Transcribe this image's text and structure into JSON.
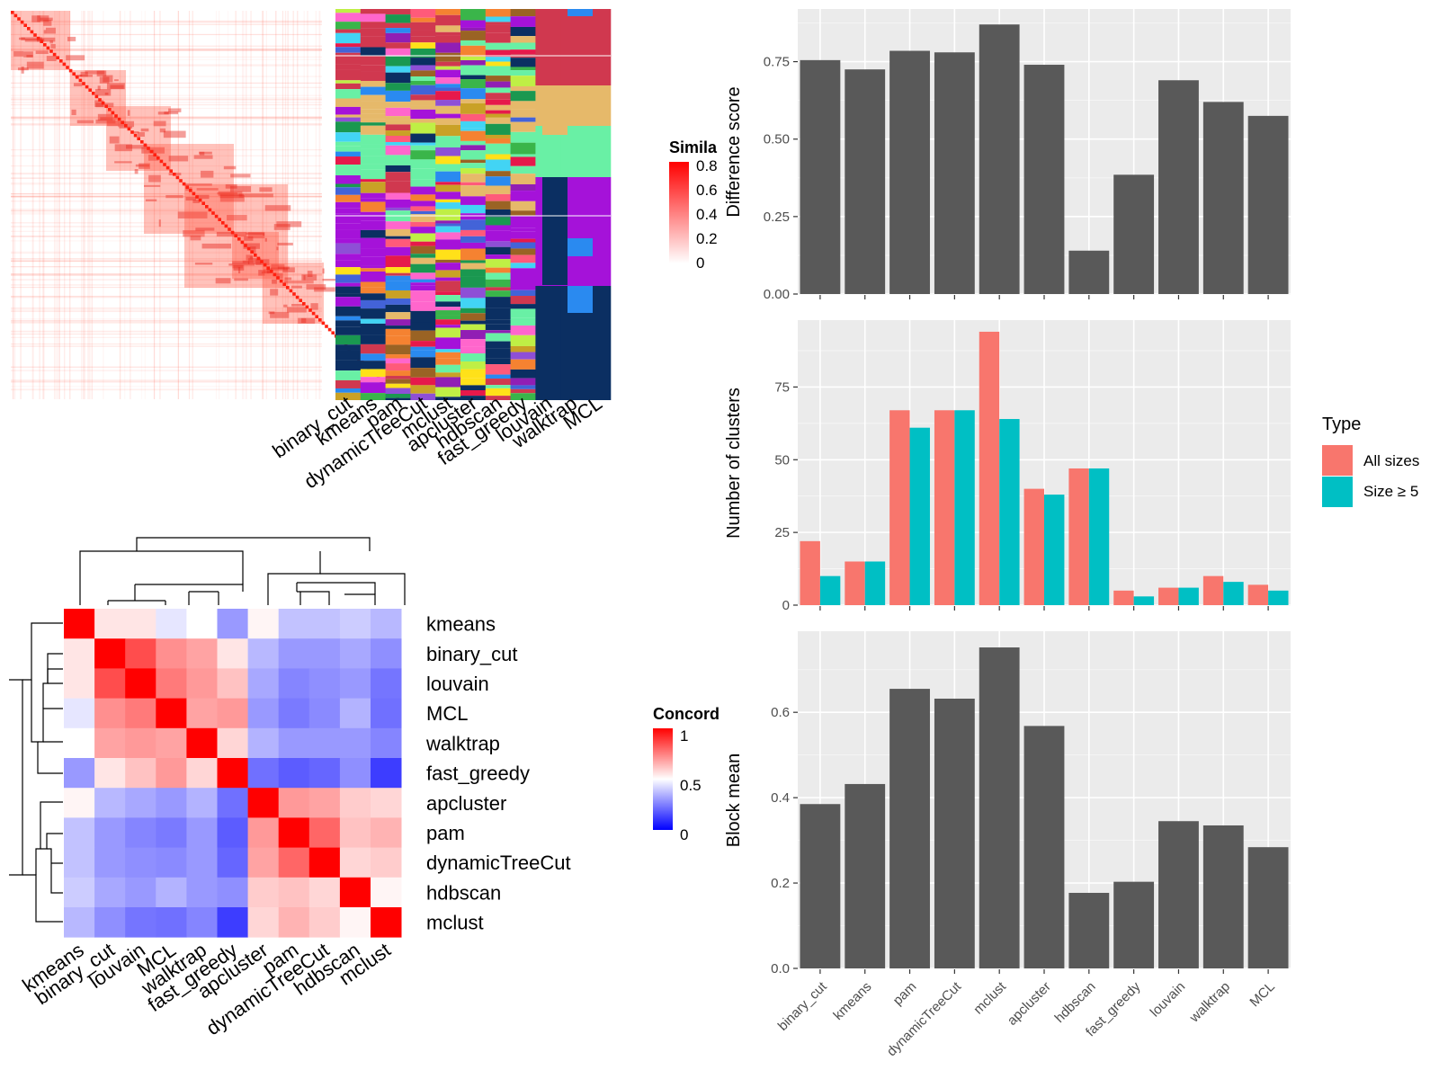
{
  "colors": {
    "panel_bg": "#ebebeb",
    "grid": "#ffffff",
    "bar_fill": "#595959",
    "all_sizes": "#f8766d",
    "size_ge5": "#00bfc4",
    "concordance_low": "#0000ff",
    "concordance_mid": "#ffffff",
    "concordance_high": "#ff0000",
    "similarity_low": "#ffffff",
    "similarity_high": "#ff0000"
  },
  "similarity_heatmap": {
    "legend_title": "Simila",
    "legend_ticks": [
      "0",
      "0.2",
      "0.4",
      "0.6",
      "0.8"
    ],
    "method_labels": [
      "binary_cut",
      "kmeans",
      "pam",
      "dynamicTreeCut",
      "mclust",
      "apcluster",
      "hdbscan",
      "fast_greedy",
      "louvain",
      "walktrap",
      "MCL"
    ]
  },
  "concordance_heatmap": {
    "legend_title": "Concord",
    "legend_ticks": [
      "1",
      "0.5",
      "0"
    ],
    "order": [
      "kmeans",
      "binary_cut",
      "louvain",
      "MCL",
      "walktrap",
      "fast_greedy",
      "apcluster",
      "pam",
      "dynamicTreeCut",
      "hdbscan",
      "mclust"
    ]
  },
  "chart_data": [
    {
      "type": "bar",
      "ylabel": "Difference score",
      "categories": [
        "binary_cut",
        "kmeans",
        "pam",
        "dynamicTreeCut",
        "mclust",
        "apcluster",
        "hdbscan",
        "fast_greedy",
        "louvain",
        "walktrap",
        "MCL"
      ],
      "values": [
        0.755,
        0.725,
        0.785,
        0.78,
        0.87,
        0.74,
        0.14,
        0.385,
        0.69,
        0.62,
        0.575
      ],
      "yticks": [
        "0.00",
        "0.25",
        "0.50",
        "0.75"
      ],
      "ylim": [
        0,
        0.92
      ]
    },
    {
      "type": "bar",
      "ylabel": "Number of clusters",
      "categories": [
        "binary_cut",
        "kmeans",
        "pam",
        "dynamicTreeCut",
        "mclust",
        "apcluster",
        "hdbscan",
        "fast_greedy",
        "louvain",
        "walktrap",
        "MCL"
      ],
      "series": [
        {
          "name": "All sizes",
          "values": [
            22,
            15,
            67,
            67,
            94,
            40,
            47,
            5,
            6,
            10,
            7
          ]
        },
        {
          "name": "Size ≥ 5",
          "values": [
            10,
            15,
            61,
            67,
            64,
            38,
            47,
            3,
            6,
            8,
            5
          ]
        }
      ],
      "yticks": [
        "0",
        "25",
        "50",
        "75"
      ],
      "ylim": [
        0,
        98
      ],
      "legend": {
        "title": "Type",
        "position": "right"
      }
    },
    {
      "type": "bar",
      "ylabel": "Block mean",
      "categories": [
        "binary_cut",
        "kmeans",
        "pam",
        "dynamicTreeCut",
        "mclust",
        "apcluster",
        "hdbscan",
        "fast_greedy",
        "louvain",
        "walktrap",
        "MCL"
      ],
      "values": [
        0.385,
        0.432,
        0.655,
        0.632,
        0.752,
        0.568,
        0.177,
        0.203,
        0.345,
        0.335,
        0.284
      ],
      "yticks": [
        "0.0",
        "0.2",
        "0.4",
        "0.6"
      ],
      "ylim": [
        0,
        0.79
      ]
    }
  ]
}
